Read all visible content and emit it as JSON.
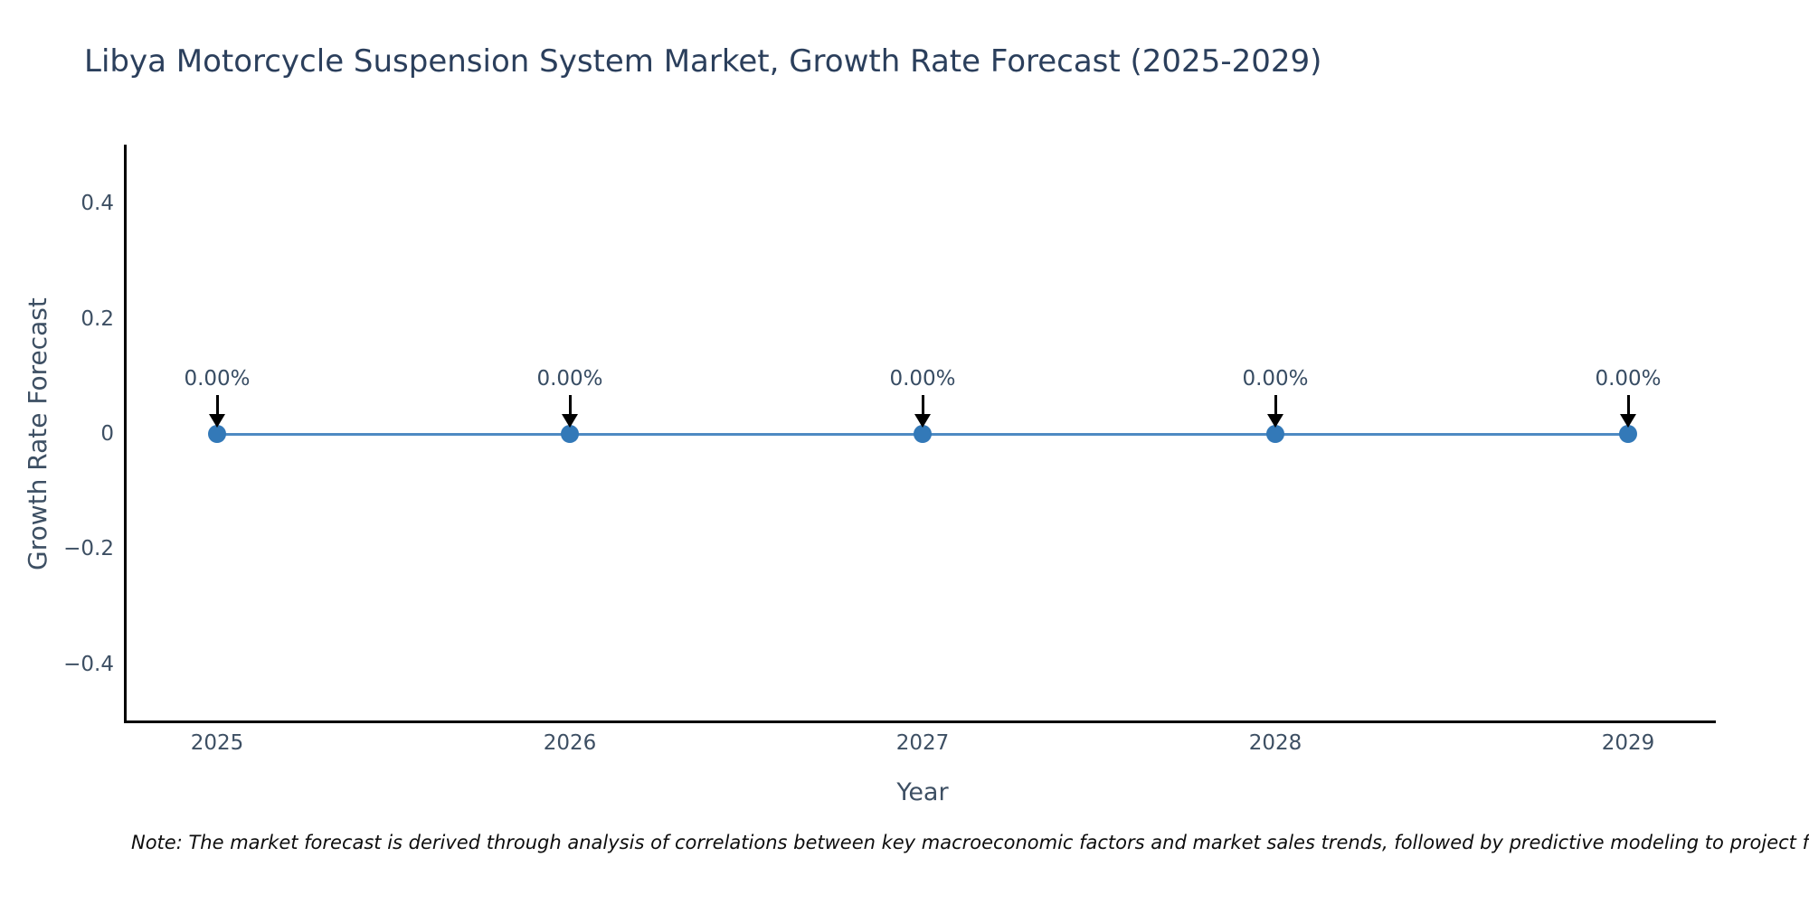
{
  "chart_data": {
    "type": "line",
    "title": "Libya Motorcycle Suspension System Market, Growth Rate Forecast (2025-2029)",
    "xlabel": "Year",
    "ylabel": "Growth Rate Forecast",
    "categories": [
      "2025",
      "2026",
      "2027",
      "2028",
      "2029"
    ],
    "x": [
      2025,
      2026,
      2027,
      2028,
      2029
    ],
    "series": [
      {
        "name": "Growth Rate Forecast",
        "values": [
          0,
          0,
          0,
          0,
          0
        ]
      }
    ],
    "point_labels": [
      "0.00%",
      "0.00%",
      "0.00%",
      "0.00%",
      "0.00%"
    ],
    "ylim": [
      -0.5,
      0.5
    ],
    "yticks": [
      0.4,
      0.2,
      0,
      -0.2,
      -0.4
    ],
    "ytick_labels": [
      "0.4",
      "0.2",
      "0",
      "−0.2",
      "−0.4"
    ],
    "grid": false,
    "legend_position": "none",
    "colors": {
      "line": "#4e8ac2",
      "marker": "#3379b8",
      "axis": "#000000",
      "tick_text": "#3d4f63",
      "title_text": "#2b3f5c",
      "annotation_text": "#374c63",
      "annotation_arrow": "#000000",
      "background": "#ffffff"
    }
  },
  "note": "Note: The market forecast is derived through analysis of correlations between key macroeconomic factors and market sales trends, followed by predictive modeling to project future sa"
}
